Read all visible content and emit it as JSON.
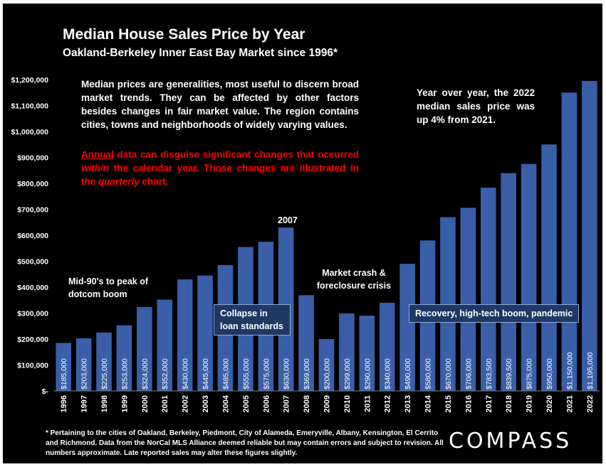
{
  "title": "Median House Sales Price by Year",
  "subtitle": "Oakland-Berkeley Inner East Bay Market since 1996*",
  "notes": {
    "main": "Median prices are generalities, most useful to discern broad market trends. They can be affected by other factors besides changes in fair market value. The region contains cities, towns and neighborhoods of widely varying values.",
    "red_part1": "Annual",
    "red_part2": " data can disguise significant changes that occurred ",
    "red_part3": "within",
    "red_part4": " the calendar year. Those changes are illustrated in the ",
    "red_part5": "quarterly",
    "red_part6": " chart.",
    "yoy": "Year over year, the 2022 median sales price was up 4% from 2021."
  },
  "annotations": {
    "mid90s": "Mid-90's to peak of dotcom boom",
    "peak2007": "2007",
    "crash": "Market crash & foreclosure crisis",
    "collapse": "Collapse in loan standards",
    "recovery": "Recovery, high-tech boom, pandemic"
  },
  "footnote": "* Pertaining to the cities of Oakland, Berkeley, Piedmont, City of Alameda, Emeryville, Albany, Kensington, El Cerrito and Richmond. Data from the NorCal MLS Alliance deemed reliable but may contain errors and subject to revision. All numbers approximate. Late reported sales may alter these figures slightly.",
  "logo": "COMPASS",
  "colors": {
    "bar": "#3a5ea8",
    "background": "#000000",
    "text": "#ffffff",
    "red": "#ff0000",
    "box": "#1f3864"
  },
  "chart_data": {
    "type": "bar",
    "title": "Median House Sales Price by Year",
    "subtitle": "Oakland-Berkeley Inner East Bay Market since 1996*",
    "categories": [
      "1996",
      "1997",
      "1998",
      "1999",
      "2000",
      "2001",
      "2002",
      "2003",
      "2004",
      "2005",
      "2006",
      "2007",
      "2008",
      "2009",
      "2010",
      "2011",
      "2012",
      "2013",
      "2014",
      "2015",
      "2016",
      "2017",
      "2018",
      "2019",
      "2020",
      "2021",
      "2022"
    ],
    "values": [
      185000,
      203000,
      225000,
      253000,
      324000,
      352000,
      430000,
      445000,
      485000,
      555000,
      575000,
      630000,
      369000,
      200000,
      299000,
      290000,
      340000,
      490000,
      580000,
      670000,
      706000,
      783500,
      839500,
      875000,
      950000,
      1150000,
      1195000
    ],
    "value_labels": [
      "$185,000",
      "$203,000",
      "$225,000",
      "$253,000",
      "$324,000",
      "$352,000",
      "$430,000",
      "$445,000",
      "$485,000",
      "$555,000",
      "$575,000",
      "$630,000",
      "$369,000",
      "$200,000",
      "$299,000",
      "$290,000",
      "$340,000",
      "$490,000",
      "$580,000",
      "$670,000",
      "$706,000",
      "$783,500",
      "$839,500",
      "$875,000",
      "$950,000",
      "$1,150,000",
      "$1,195,000"
    ],
    "ylim": [
      0,
      1200000
    ],
    "yticks": [
      0,
      100000,
      200000,
      300000,
      400000,
      500000,
      600000,
      700000,
      800000,
      900000,
      1000000,
      1100000,
      1200000
    ],
    "ytick_labels": [
      "$-",
      "$100,000",
      "$200,000",
      "$300,000",
      "$400,000",
      "$500,000",
      "$600,000",
      "$700,000",
      "$800,000",
      "$900,000",
      "$1,000,000",
      "$1,100,000",
      "$1,200,000"
    ],
    "grid": false,
    "legend": "none"
  }
}
